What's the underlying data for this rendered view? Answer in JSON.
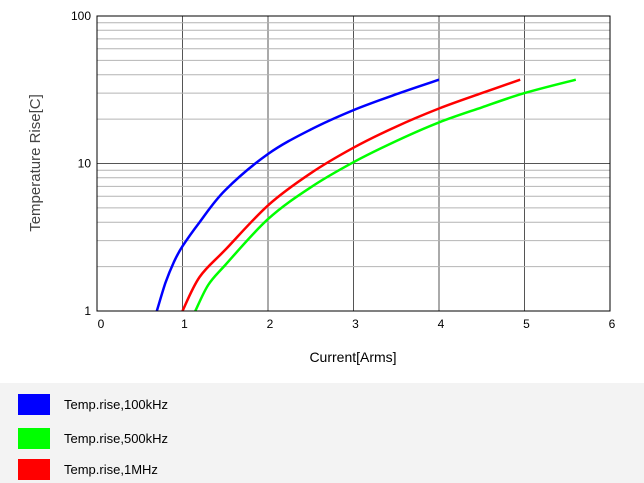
{
  "chart_data": {
    "type": "line",
    "xlabel": "Current[Arms]",
    "ylabel": "Temperature Rise[C]",
    "xlim": [
      0,
      6
    ],
    "ylim": [
      1,
      100
    ],
    "y_scale": "log",
    "grid": true,
    "x_ticks": [
      "0",
      "1",
      "2",
      "3",
      "4",
      "5",
      "6"
    ],
    "y_ticks": [
      {
        "value": 1,
        "label": "1"
      },
      {
        "value": 10,
        "label": "10"
      },
      {
        "value": 100,
        "label": "100"
      }
    ],
    "legend_position": "bottom",
    "series": [
      {
        "name": "Temp.rise,100kHz",
        "color": "#0000ff",
        "x": [
          0.7,
          0.8,
          0.9,
          1.0,
          1.2,
          1.5,
          2.0,
          2.5,
          3.0,
          3.5,
          4.0
        ],
        "y": [
          1.0,
          1.55,
          2.15,
          2.75,
          4.0,
          6.6,
          11.6,
          17.0,
          23.0,
          29.5,
          37.0
        ]
      },
      {
        "name": "Temp.rise,500kHz",
        "color": "#00ff00",
        "x": [
          1.15,
          1.3,
          1.5,
          2.0,
          2.5,
          3.0,
          3.5,
          4.0,
          4.5,
          5.0,
          5.6
        ],
        "y": [
          1.0,
          1.5,
          2.05,
          4.2,
          6.9,
          10.2,
          14.2,
          19.0,
          24.0,
          30.0,
          37.0
        ]
      },
      {
        "name": "Temp.rise,1MHz",
        "color": "#ff0000",
        "x": [
          1.0,
          1.2,
          1.5,
          2.0,
          2.5,
          3.0,
          3.5,
          4.0,
          4.5,
          4.95
        ],
        "y": [
          1.0,
          1.7,
          2.6,
          5.2,
          8.6,
          12.8,
          17.8,
          23.6,
          30.0,
          37.0
        ]
      }
    ]
  },
  "legend": {
    "items": [
      {
        "label": "Temp.rise,100kHz",
        "color": "#0000ff"
      },
      {
        "label": "Temp.rise,500kHz",
        "color": "#00ff00"
      },
      {
        "label": "Temp.rise,1MHz",
        "color": "#ff0000"
      }
    ]
  }
}
